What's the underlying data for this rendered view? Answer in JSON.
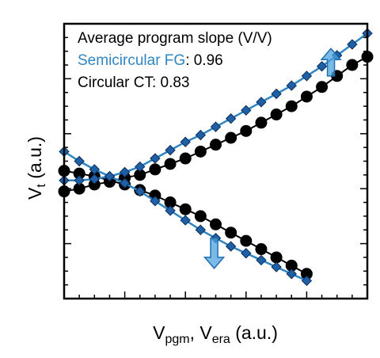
{
  "chart_data": {
    "type": "scatter",
    "xlabel_parts": [
      {
        "text": "V",
        "sub": false
      },
      {
        "text": "pgm",
        "sub": true
      },
      {
        "text": ", V",
        "sub": false
      },
      {
        "text": "era",
        "sub": true
      },
      {
        "text": " (a.u.)",
        "sub": false
      }
    ],
    "ylabel_parts": [
      {
        "text": "V",
        "sub": false
      },
      {
        "text": "t",
        "sub": true
      },
      {
        "text": " (a.u.)",
        "sub": false
      }
    ],
    "xlim": [
      0,
      20
    ],
    "ylim": [
      0,
      20
    ],
    "x_minor_ticks": 20,
    "y_minor_ticks": 20,
    "annotation": {
      "heading": "Average program slope (V/V)",
      "series_1_label": "Semicircular FG",
      "series_1_value": ": 0.96",
      "series_2_label": "Circular CT",
      "series_2_value": ": 0.83"
    },
    "colors": {
      "series_1": "#2f86c4",
      "series_1_marker": "#1f5fa6",
      "series_2": "#000000",
      "arrow": "#4da3dd"
    },
    "series": [
      {
        "name": "Semicircular FG",
        "marker": "diamond",
        "program": {
          "x": [
            0,
            1,
            2,
            3,
            4,
            5,
            6,
            7,
            8,
            9,
            10,
            11,
            12,
            13,
            14,
            15,
            16,
            17,
            18,
            19,
            20
          ],
          "y": [
            8.6,
            8.6,
            8.7,
            8.9,
            9.2,
            9.6,
            10.2,
            10.8,
            11.4,
            11.9,
            12.5,
            13.1,
            13.7,
            14.3,
            14.9,
            15.5,
            16.2,
            16.9,
            17.7,
            18.5,
            19.3
          ]
        },
        "erase": {
          "x": [
            0,
            1,
            2,
            3,
            4,
            5,
            6,
            7,
            8,
            9,
            10,
            11,
            12,
            13,
            14,
            15,
            16
          ],
          "y": [
            10.7,
            10.0,
            9.4,
            8.9,
            8.4,
            7.8,
            7.1,
            6.4,
            5.7,
            5.0,
            4.4,
            3.8,
            3.3,
            2.8,
            2.3,
            1.8,
            1.3
          ]
        }
      },
      {
        "name": "Circular CT",
        "marker": "circle",
        "program": {
          "x": [
            0,
            1,
            2,
            3,
            4,
            5,
            6,
            7,
            8,
            9,
            10,
            11,
            12,
            13,
            14,
            15,
            16,
            17,
            18,
            19,
            20
          ],
          "y": [
            7.8,
            8.0,
            8.3,
            8.5,
            8.8,
            9.0,
            9.4,
            9.8,
            10.2,
            10.7,
            11.2,
            11.7,
            12.2,
            12.8,
            13.4,
            14.0,
            14.7,
            15.4,
            16.2,
            17.0,
            17.6
          ]
        },
        "erase": {
          "x": [
            0,
            1,
            2,
            3,
            4,
            5,
            6,
            7,
            8,
            9,
            10,
            11,
            12,
            13,
            14,
            15,
            16
          ],
          "y": [
            9.3,
            9.1,
            8.9,
            8.6,
            8.3,
            7.9,
            7.5,
            7.0,
            6.5,
            6.0,
            5.4,
            4.8,
            4.2,
            3.6,
            3.0,
            2.4,
            1.8
          ]
        }
      }
    ],
    "arrows": [
      {
        "x": 17.6,
        "y_from": 16.2,
        "y_to": 18.2,
        "direction": "up"
      },
      {
        "x": 9.9,
        "y_from": 4.4,
        "y_to": 2.2,
        "direction": "down"
      }
    ]
  }
}
